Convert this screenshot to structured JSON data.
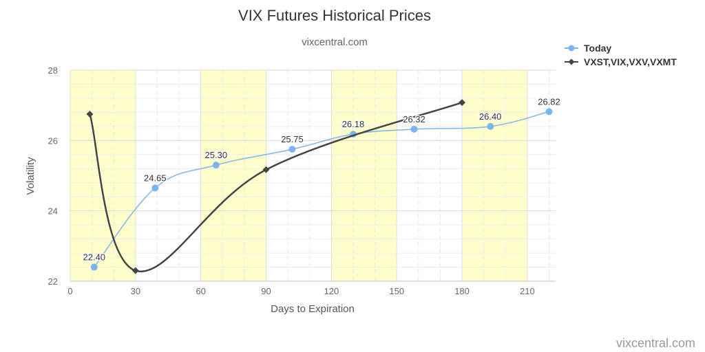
{
  "chart_data": {
    "type": "line",
    "title": "VIX Futures Historical Prices",
    "subtitle": "vixcentral.com",
    "xlabel": "Days to Expiration",
    "ylabel": "Volatility",
    "xlim": [
      0,
      223
    ],
    "ylim": [
      22,
      28
    ],
    "x_ticks": [
      "0",
      "30",
      "60",
      "90",
      "120",
      "150",
      "180",
      "210"
    ],
    "y_ticks": [
      "22",
      "24",
      "26",
      "28"
    ],
    "shaded_bands": [
      [
        0,
        30
      ],
      [
        60,
        90
      ],
      [
        120,
        150
      ],
      [
        180,
        210
      ]
    ],
    "band_color": "#ffffcc",
    "legend_position": "top-right",
    "series": [
      {
        "name": "Today",
        "color": "#7cb5ec",
        "marker": "circle",
        "x": [
          11,
          39,
          67,
          102,
          130,
          158,
          193,
          220
        ],
        "y": [
          22.4,
          24.65,
          25.3,
          25.75,
          26.18,
          26.32,
          26.4,
          26.82
        ],
        "labels": [
          "22.40",
          "24.65",
          "25.30",
          "25.75",
          "26.18",
          "26.32",
          "26.40",
          "26.82"
        ]
      },
      {
        "name": "VXST,VIX,VXV,VXMT",
        "color": "#434348",
        "marker": "diamond",
        "x": [
          9,
          30,
          90,
          180
        ],
        "y": [
          26.75,
          22.3,
          25.17,
          27.08
        ]
      }
    ]
  },
  "credit": "vixcentral.com"
}
